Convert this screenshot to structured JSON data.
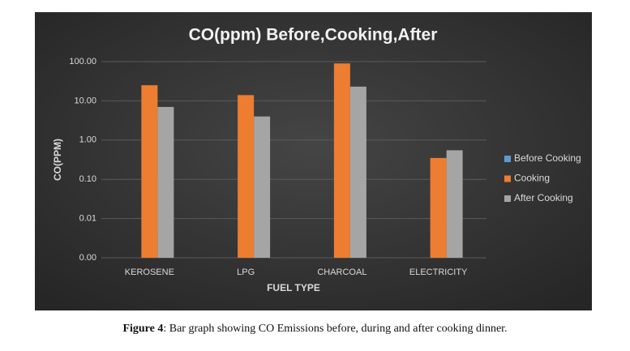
{
  "chart_data": {
    "type": "bar",
    "title": "CO(ppm) Before,Cooking,After",
    "x_label": "FUEL TYPE",
    "y_label": "CO(PPM)",
    "categories": [
      "KEROSENE",
      "LPG",
      "CHARCOAL",
      "ELECTRICITY"
    ],
    "series": [
      {
        "name": "Before Cooking",
        "color": "#5b9bd5",
        "values": [
          null,
          null,
          null,
          null
        ]
      },
      {
        "name": "Cooking",
        "color": "#ed7d31",
        "values": [
          25,
          14,
          90,
          0.35
        ]
      },
      {
        "name": "After Cooking",
        "color": "#a5a5a5",
        "values": [
          7,
          4,
          23,
          0.55
        ]
      }
    ],
    "log_scale": true,
    "ylim": [
      0.001,
      100
    ],
    "yticks": [
      {
        "value": 0.001,
        "label": "0.00"
      },
      {
        "value": 0.01,
        "label": "0.01"
      },
      {
        "value": 0.1,
        "label": "0.10"
      },
      {
        "value": 1,
        "label": "1.00"
      },
      {
        "value": 10,
        "label": "10.00"
      },
      {
        "value": 100,
        "label": "100.00"
      }
    ],
    "grid": true,
    "legend": "right"
  },
  "caption": {
    "label": "Figure 4",
    "text": ": Bar graph showing CO Emissions before, during and after cooking dinner."
  }
}
